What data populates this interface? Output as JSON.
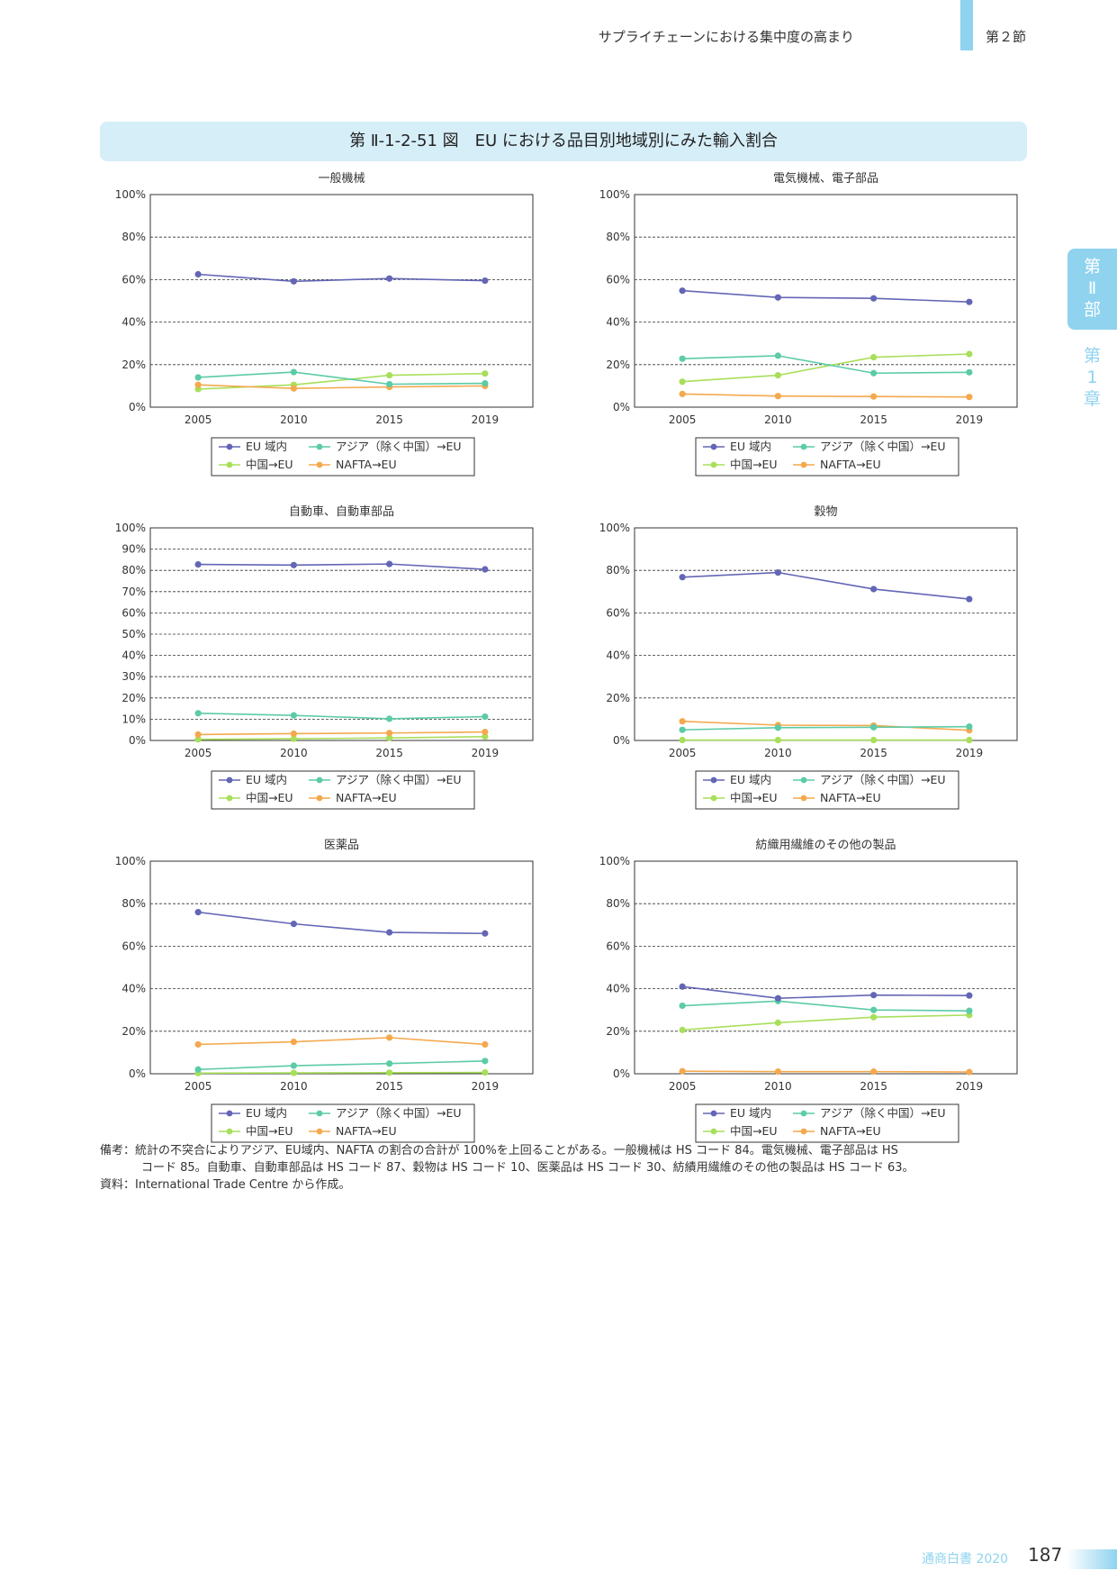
{
  "header": {
    "title": "サプライチェーンにおける集中度の高まり",
    "section": "第２節"
  },
  "side_tab": {
    "part": [
      "第",
      "Ⅱ",
      "部"
    ],
    "chapter": [
      "第",
      "1",
      "章"
    ]
  },
  "figure": {
    "title": "第 Ⅱ-1-2-51 図　EU における品目別地域別にみた輸入割合"
  },
  "legend": [
    "EU 域内",
    "アジア（除く中国）→EU",
    "中国→EU",
    "NAFTA→EU"
  ],
  "colors": {
    "EU 域内": "#6366b5",
    "アジア（除く中国）→EU": "#5ccba7",
    "中国→EU": "#a8df5a",
    "NAFTA→EU": "#f4a94e",
    "accent": "#8fd3ef"
  },
  "chart_data": [
    {
      "type": "line",
      "title": "一般機械",
      "x": [
        "2005",
        "2010",
        "2015",
        "2019"
      ],
      "ylim": [
        0,
        100
      ],
      "yticks": [
        "0%",
        "20%",
        "40%",
        "60%",
        "80%",
        "100%"
      ],
      "grid": true,
      "legend_placement": "bottom",
      "series": [
        {
          "name": "EU 域内",
          "values": [
            62.5,
            59.2,
            60.5,
            59.5
          ]
        },
        {
          "name": "アジア（除く中国）→EU",
          "values": [
            14.0,
            16.5,
            10.8,
            11.2
          ]
        },
        {
          "name": "中国→EU",
          "values": [
            8.5,
            10.5,
            15.0,
            15.8
          ]
        },
        {
          "name": "NAFTA→EU",
          "values": [
            10.5,
            8.8,
            9.5,
            10.0
          ]
        }
      ]
    },
    {
      "type": "line",
      "title": "電気機械、電子部品",
      "x": [
        "2005",
        "2010",
        "2015",
        "2019"
      ],
      "ylim": [
        0,
        100
      ],
      "yticks": [
        "0%",
        "20%",
        "40%",
        "60%",
        "80%",
        "100%"
      ],
      "grid": true,
      "legend_placement": "bottom",
      "series": [
        {
          "name": "EU 域内",
          "values": [
            54.8,
            51.6,
            51.2,
            49.5
          ]
        },
        {
          "name": "アジア（除く中国）→EU",
          "values": [
            22.8,
            24.2,
            16.0,
            16.4
          ]
        },
        {
          "name": "中国→EU",
          "values": [
            12.0,
            15.0,
            23.5,
            25.0
          ]
        },
        {
          "name": "NAFTA→EU",
          "values": [
            6.2,
            5.2,
            5.0,
            4.8
          ]
        }
      ]
    },
    {
      "type": "line",
      "title": "自動車、自動車部品",
      "x": [
        "2005",
        "2010",
        "2015",
        "2019"
      ],
      "ylim": [
        0,
        100
      ],
      "yticks": [
        "0%",
        "10%",
        "20%",
        "30%",
        "40%",
        "50%",
        "60%",
        "70%",
        "80%",
        "90%",
        "100%"
      ],
      "grid": true,
      "legend_placement": "bottom",
      "series": [
        {
          "name": "EU 域内",
          "values": [
            82.8,
            82.5,
            83.0,
            80.5
          ]
        },
        {
          "name": "アジア（除く中国）→EU",
          "values": [
            12.8,
            11.8,
            10.2,
            11.2
          ]
        },
        {
          "name": "中国→EU",
          "values": [
            0.5,
            0.8,
            1.2,
            1.8
          ]
        },
        {
          "name": "NAFTA→EU",
          "values": [
            2.8,
            3.2,
            3.5,
            4.0
          ]
        }
      ]
    },
    {
      "type": "line",
      "title": "穀物",
      "x": [
        "2005",
        "2010",
        "2015",
        "2019"
      ],
      "ylim": [
        0,
        100
      ],
      "yticks": [
        "0%",
        "20%",
        "40%",
        "60%",
        "80%",
        "100%"
      ],
      "grid": true,
      "legend_placement": "bottom",
      "series": [
        {
          "name": "EU 域内",
          "values": [
            76.8,
            79.0,
            71.2,
            66.5
          ]
        },
        {
          "name": "アジア（除く中国）→EU",
          "values": [
            5.0,
            6.0,
            6.2,
            6.5
          ]
        },
        {
          "name": "中国→EU",
          "values": [
            0.2,
            0.2,
            0.2,
            0.2
          ]
        },
        {
          "name": "NAFTA→EU",
          "values": [
            9.0,
            7.2,
            7.0,
            4.8
          ]
        }
      ]
    },
    {
      "type": "line",
      "title": "医薬品",
      "x": [
        "2005",
        "2010",
        "2015",
        "2019"
      ],
      "ylim": [
        0,
        100
      ],
      "yticks": [
        "0%",
        "20%",
        "40%",
        "60%",
        "80%",
        "100%"
      ],
      "grid": true,
      "legend_placement": "bottom",
      "series": [
        {
          "name": "EU 域内",
          "values": [
            76.0,
            70.5,
            66.5,
            66.0
          ]
        },
        {
          "name": "アジア（除く中国）→EU",
          "values": [
            2.0,
            3.8,
            4.8,
            6.0
          ]
        },
        {
          "name": "中国→EU",
          "values": [
            0.3,
            0.4,
            0.5,
            0.6
          ]
        },
        {
          "name": "NAFTA→EU",
          "values": [
            13.8,
            15.0,
            17.0,
            13.8
          ]
        }
      ]
    },
    {
      "type": "line",
      "title": "紡織用繊維のその他の製品",
      "x": [
        "2005",
        "2010",
        "2015",
        "2019"
      ],
      "ylim": [
        0,
        100
      ],
      "yticks": [
        "0%",
        "20%",
        "40%",
        "60%",
        "80%",
        "100%"
      ],
      "grid": true,
      "legend_placement": "bottom",
      "series": [
        {
          "name": "EU 域内",
          "values": [
            41.0,
            35.5,
            37.0,
            36.8
          ]
        },
        {
          "name": "アジア（除く中国）→EU",
          "values": [
            32.0,
            34.2,
            30.0,
            29.6
          ]
        },
        {
          "name": "中国→EU",
          "values": [
            20.6,
            24.0,
            26.6,
            27.6
          ]
        },
        {
          "name": "NAFTA→EU",
          "values": [
            1.2,
            1.0,
            1.0,
            0.8
          ]
        }
      ]
    }
  ],
  "notes": {
    "note_line1": "備考：統計の不突合によりアジア、EU域内、NAFTA の割合の合計が 100%を上回ることがある。一般機械は HS コード 84。電気機械、電子部品は HS",
    "note_line2": "コード 85。自動車、自動車部品は HS コード 87、穀物は HS コード 10、医薬品は HS コード 30、紡績用繊維のその他の製品は HS コード 63。",
    "source": "資料：International Trade Centre から作成。"
  },
  "footer": {
    "book": "通商白書 2020",
    "page": "187"
  }
}
